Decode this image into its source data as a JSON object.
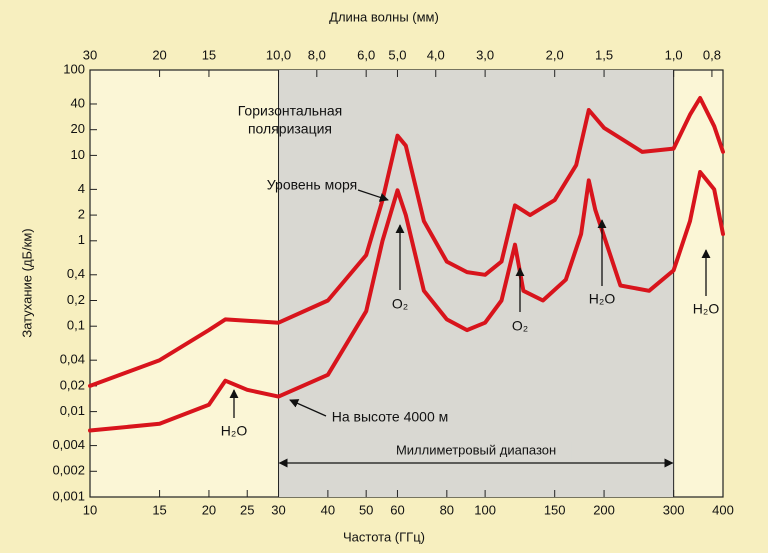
{
  "chart_data": {
    "type": "line",
    "top_axis_label": "Длина волны (мм)",
    "x_label": "Частота (ГГц)",
    "y_label": "Затухание (дБ/км)",
    "log_x": true,
    "log_y": true,
    "xlim": [
      10,
      400
    ],
    "xticks": [
      10,
      15,
      20,
      25,
      30,
      40,
      50,
      60,
      80,
      100,
      150,
      200,
      300,
      400
    ],
    "x2lim": [
      30,
      0.75
    ],
    "x2ticks": [
      30,
      20,
      15,
      {
        "value": 10,
        "label": "10,0"
      },
      {
        "value": 8,
        "label": "8,0"
      },
      {
        "value": 6,
        "label": "6,0"
      },
      {
        "value": 5,
        "label": "5,0"
      },
      {
        "value": 4,
        "label": "4,0"
      },
      {
        "value": 3,
        "label": "3,0"
      },
      {
        "value": 2,
        "label": "2,0"
      },
      {
        "value": 1.5,
        "label": "1,5"
      },
      {
        "value": 1,
        "label": "1,0"
      },
      {
        "value": 0.8,
        "label": "0,8"
      }
    ],
    "ylim": [
      0.001,
      100
    ],
    "yticks": [
      100,
      40,
      20,
      10,
      4,
      2,
      1,
      {
        "value": 0.4,
        "label": "0,4"
      },
      {
        "value": 0.2,
        "label": "0,2"
      },
      {
        "value": 0.1,
        "label": "0,1"
      },
      {
        "value": 0.04,
        "label": "0,04"
      },
      {
        "value": 0.02,
        "label": "0,02"
      },
      {
        "value": 0.01,
        "label": "0,01"
      },
      {
        "value": 0.004,
        "label": "0,004"
      },
      {
        "value": 0.002,
        "label": "0,002"
      },
      {
        "value": 0.001,
        "label": "0,001"
      }
    ],
    "band": [
      30,
      300
    ],
    "band_label": "Миллиметровый диапазон",
    "series": [
      {
        "name": "Уровень моря",
        "color": "#d8141c",
        "x": [
          10,
          15,
          20,
          22,
          30,
          40,
          50,
          55,
          60,
          63,
          70,
          80,
          90,
          100,
          110,
          119,
          130,
          150,
          170,
          183,
          200,
          250,
          300,
          330,
          350,
          380,
          400
        ],
        "values": [
          0.02,
          0.04,
          0.09,
          0.12,
          0.11,
          0.2,
          0.68,
          3,
          17,
          13,
          1.7,
          0.57,
          0.43,
          0.4,
          0.57,
          2.6,
          2,
          3,
          7.7,
          34,
          21,
          11,
          12,
          30,
          47,
          22,
          11
        ]
      },
      {
        "name": "На высоте 4000 м",
        "color": "#d8141c",
        "x": [
          10,
          15,
          20,
          22,
          25,
          30,
          40,
          50,
          55,
          60,
          63,
          70,
          80,
          90,
          100,
          110,
          119,
          125,
          140,
          160,
          175,
          183,
          190,
          220,
          260,
          300,
          330,
          350,
          380,
          400
        ],
        "values": [
          0.006,
          0.0072,
          0.012,
          0.023,
          0.018,
          0.015,
          0.027,
          0.15,
          1.0,
          3.9,
          2,
          0.26,
          0.12,
          0.09,
          0.11,
          0.2,
          0.9,
          0.26,
          0.2,
          0.35,
          1.2,
          5.1,
          2.3,
          0.3,
          0.26,
          0.45,
          1.7,
          6.4,
          4,
          1.2
        ]
      }
    ],
    "annotations": {
      "polarization": [
        "Горизонтальная",
        "поляризация"
      ],
      "sea_level": "Уровень моря",
      "altitude": "На высоте 4000 м",
      "o2_a": "O₂",
      "o2_b": "O₂",
      "h2o_a": "H₂O",
      "h2o_b": "H₂O",
      "h2o_c": "H₂O"
    }
  }
}
